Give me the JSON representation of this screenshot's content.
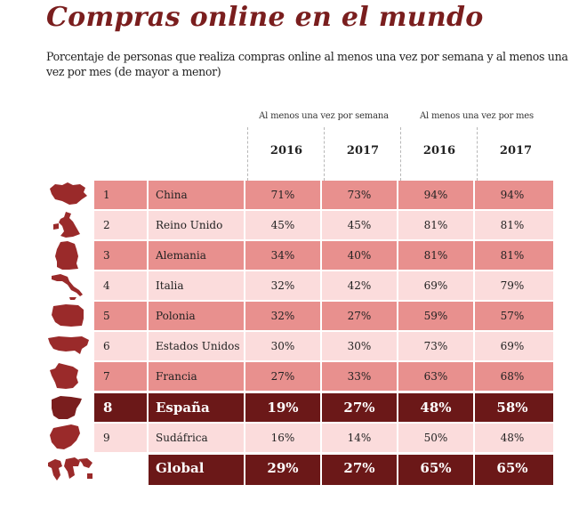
{
  "title": "Compras online en el mundo",
  "subtitle": "Porcentaje de personas que realiza compras online al menos una vez por semana y al menos una vez por mes (de mayor a menor)",
  "column_groups": [
    {
      "label": "Al menos una vez por semana",
      "years": [
        "2016",
        "2017"
      ]
    },
    {
      "label": "Al menos una vez por mes",
      "years": [
        "2016",
        "2017"
      ]
    }
  ],
  "colors": {
    "title": "#7a1e1e",
    "row_strong": "#e8908e",
    "row_light": "#fbdcdc",
    "row_dark": "#6b1818",
    "icon": "#9a2a2a",
    "icon_highlight": "#7a1e1e"
  },
  "rows": [
    {
      "rank": "1",
      "country": "China",
      "icon": "china-map-icon",
      "week2016": "71%",
      "week2017": "73%",
      "month2016": "94%",
      "month2017": "94%"
    },
    {
      "rank": "2",
      "country": "Reino Unido",
      "icon": "uk-map-icon",
      "week2016": "45%",
      "week2017": "45%",
      "month2016": "81%",
      "month2017": "81%"
    },
    {
      "rank": "3",
      "country": "Alemania",
      "icon": "germany-map-icon",
      "week2016": "34%",
      "week2017": "40%",
      "month2016": "81%",
      "month2017": "81%"
    },
    {
      "rank": "4",
      "country": "Italia",
      "icon": "italy-map-icon",
      "week2016": "32%",
      "week2017": "42%",
      "month2016": "69%",
      "month2017": "79%"
    },
    {
      "rank": "5",
      "country": "Polonia",
      "icon": "poland-map-icon",
      "week2016": "32%",
      "week2017": "27%",
      "month2016": "59%",
      "month2017": "57%"
    },
    {
      "rank": "6",
      "country": "Estados Unidos",
      "icon": "usa-map-icon",
      "week2016": "30%",
      "week2017": "30%",
      "month2016": "73%",
      "month2017": "69%"
    },
    {
      "rank": "7",
      "country": "Francia",
      "icon": "france-map-icon",
      "week2016": "27%",
      "week2017": "33%",
      "month2016": "63%",
      "month2017": "68%"
    },
    {
      "rank": "8",
      "country": "España",
      "icon": "spain-map-icon",
      "week2016": "19%",
      "week2017": "27%",
      "month2016": "48%",
      "month2017": "58%"
    },
    {
      "rank": "9",
      "country": "Sudáfrica",
      "icon": "south-africa-map-icon",
      "week2016": "16%",
      "week2017": "14%",
      "month2016": "50%",
      "month2017": "48%"
    }
  ],
  "global": {
    "label": "Global",
    "icon": "world-map-icon",
    "week2016": "29%",
    "week2017": "27%",
    "month2016": "65%",
    "month2017": "65%"
  }
}
